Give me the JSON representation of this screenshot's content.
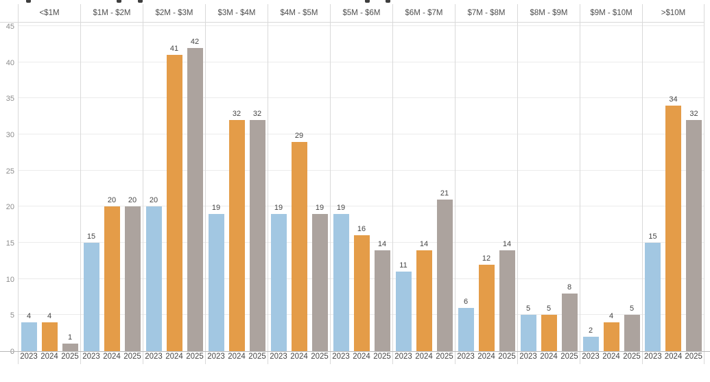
{
  "chart_data": {
    "type": "bar",
    "title": "",
    "categories": [
      "<$1M",
      "$1M - $2M",
      "$2M - $3M",
      "$3M - $4M",
      "$4M - $5M",
      "$5M - $6M",
      "$6M - $7M",
      "$7M - $8M",
      "$8M - $9M",
      "$9M - $10M",
      ">$10M"
    ],
    "series": [
      {
        "name": "2023",
        "color": "#a2c7e2",
        "values": [
          4,
          15,
          20,
          19,
          19,
          19,
          11,
          6,
          5,
          2,
          15
        ]
      },
      {
        "name": "2024",
        "color": "#e49c48",
        "values": [
          4,
          20,
          41,
          32,
          29,
          16,
          14,
          12,
          5,
          4,
          34
        ]
      },
      {
        "name": "2025",
        "color": "#aca39e",
        "values": [
          1,
          20,
          42,
          32,
          19,
          14,
          21,
          14,
          8,
          5,
          32
        ]
      }
    ],
    "xlabel": "",
    "ylabel": "",
    "ylim": [
      0,
      45
    ],
    "yticks": [
      0,
      5,
      10,
      15,
      20,
      25,
      30,
      35,
      40,
      45
    ],
    "grid": true,
    "bar_labels": true,
    "legend_position": "none"
  },
  "style": {
    "gridline_color": "#ebebeb",
    "separator_color": "#d9d9d9",
    "baseline_color": "#b7b7b7",
    "tick_label_color": "#8c8c8c",
    "header_label_color": "#4e4e4e",
    "value_label_color": "#444444"
  }
}
